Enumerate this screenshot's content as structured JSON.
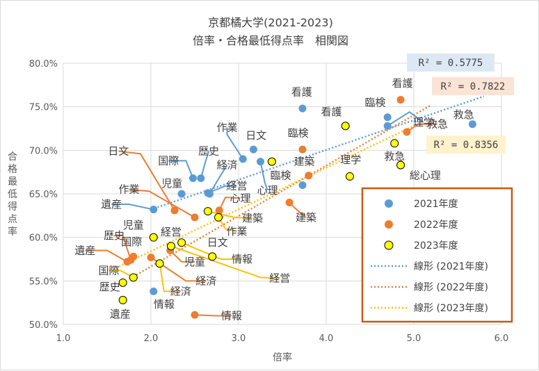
{
  "chart_data": {
    "type": "scatter",
    "title": "京都橘大学(2021-2023)",
    "subtitle": "倍率・合格最低得点率　相関図",
    "xlabel": "倍率",
    "ylabel": "合格最低得点率",
    "xlim": [
      1.0,
      6.0
    ],
    "ylim": [
      50.0,
      80.0
    ],
    "x_ticks": [
      "1.0",
      "2.0",
      "3.0",
      "4.0",
      "5.0",
      "6.0"
    ],
    "y_ticks": [
      "50.0%",
      "55.0%",
      "60.0%",
      "65.0%",
      "70.0%",
      "75.0%",
      "80.0%"
    ],
    "grid": "vertical and horizontal",
    "legend_placement": "bottom-right",
    "legend": [
      {
        "label": "2021年度",
        "kind": "marker",
        "series": 0
      },
      {
        "label": "2022年度",
        "kind": "marker",
        "series": 1
      },
      {
        "label": "2023年度",
        "kind": "marker",
        "series": 2
      },
      {
        "label": "線形 (2021年度)",
        "kind": "trend",
        "series": 0
      },
      {
        "label": "線形 (2022年度)",
        "kind": "trend",
        "series": 1
      },
      {
        "label": "線形 (2023年度)",
        "kind": "trend",
        "series": 2
      }
    ],
    "series": [
      {
        "name": "2021年度",
        "color": "#5b9bd5",
        "marker_fill": "#5b9bd5",
        "marker_stroke": "#5b9bd5",
        "trend": {
          "x0": 2.0,
          "y0": 63.2,
          "x1": 5.8,
          "y1": 76.2
        },
        "r2": "R² = 0.5775",
        "r2_fill": "#dde8f5",
        "points": [
          {
            "label": "看護",
            "x": 3.73,
            "y": 74.8
          },
          {
            "label": "臨検",
            "x": 4.7,
            "y": 73.8
          },
          {
            "label": "理学",
            "x": 4.7,
            "y": 72.8
          },
          {
            "label": "救急",
            "x": 5.67,
            "y": 73.0
          },
          {
            "label": "作業",
            "x": 3.05,
            "y": 69.0
          },
          {
            "label": "日文",
            "x": 3.17,
            "y": 70.1
          },
          {
            "label": "心理",
            "x": 3.25,
            "y": 68.7
          },
          {
            "label": "建築",
            "x": 3.73,
            "y": 66.0
          },
          {
            "label": "国際",
            "x": 2.48,
            "y": 66.8
          },
          {
            "label": "歴史",
            "x": 2.57,
            "y": 66.8
          },
          {
            "label": "経済",
            "x": 2.67,
            "y": 65.0
          },
          {
            "label": "経営",
            "x": 2.65,
            "y": 65.1
          },
          {
            "label": "児童",
            "x": 2.35,
            "y": 65.0
          },
          {
            "label": "遺産",
            "x": 2.03,
            "y": 63.2
          },
          {
            "label": "情報",
            "x": 2.03,
            "y": 53.8
          }
        ]
      },
      {
        "name": "2022年度",
        "color": "#ed7d31",
        "marker_fill": "#ed7d31",
        "marker_stroke": "#ed7d31",
        "trend": {
          "x0": 1.8,
          "y0": 55.5,
          "x1": 5.2,
          "y1": 75.2
        },
        "r2": "R² = 0.7822",
        "r2_fill": "#fbe3d6",
        "points": [
          {
            "label": "看護",
            "x": 4.85,
            "y": 75.8
          },
          {
            "label": "救急",
            "x": 4.92,
            "y": 72.1
          },
          {
            "label": "臨検",
            "x": 3.73,
            "y": 70.1
          },
          {
            "label": "建築",
            "x": 3.8,
            "y": 67.1
          },
          {
            "label": "心理",
            "x": 2.78,
            "y": 63.1
          },
          {
            "label": "建築",
            "x": 3.58,
            "y": 64.0
          },
          {
            "label": "日文",
            "x": 2.27,
            "y": 63.1
          },
          {
            "label": "作業",
            "x": 2.5,
            "y": 62.3
          },
          {
            "label": "遺産",
            "x": 1.73,
            "y": 57.2
          },
          {
            "label": "国際",
            "x": 1.8,
            "y": 57.8
          },
          {
            "label": "歴史",
            "x": 1.77,
            "y": 57.4
          },
          {
            "label": "児童",
            "x": 2.22,
            "y": 58.5
          },
          {
            "label": "経済",
            "x": 2.0,
            "y": 57.7
          },
          {
            "label": "情報",
            "x": 2.5,
            "y": 51.1
          }
        ]
      },
      {
        "name": "2023年度",
        "color": "#ffc000",
        "marker_fill": "#ffff00",
        "marker_stroke": "#000000",
        "trend": {
          "x0": 1.6,
          "y0": 56.5,
          "x1": 5.0,
          "y1": 72.8
        },
        "r2": "R² = 0.8356",
        "r2_fill": "#fff2cc",
        "points": [
          {
            "label": "看護",
            "x": 4.22,
            "y": 72.8
          },
          {
            "label": "救急",
            "x": 4.78,
            "y": 70.8
          },
          {
            "label": "総心理",
            "x": 4.85,
            "y": 68.3
          },
          {
            "label": "理学",
            "x": 4.27,
            "y": 67.0
          },
          {
            "label": "臨検",
            "x": 3.38,
            "y": 68.7
          },
          {
            "label": "建築",
            "x": 2.65,
            "y": 63.0
          },
          {
            "label": "作業",
            "x": 2.77,
            "y": 62.3
          },
          {
            "label": "日文",
            "x": 2.7,
            "y": 57.8
          },
          {
            "label": "経営",
            "x": 2.23,
            "y": 59.0
          },
          {
            "label": "児童",
            "x": 2.03,
            "y": 60.0
          },
          {
            "label": "経済",
            "x": 2.1,
            "y": 57.0
          },
          {
            "label": "国際",
            "x": 1.8,
            "y": 55.4
          },
          {
            "label": "歴史",
            "x": 1.68,
            "y": 54.8
          },
          {
            "label": "遺産",
            "x": 1.68,
            "y": 52.8
          },
          {
            "label": "情報",
            "x": 2.35,
            "y": 59.4
          }
        ]
      }
    ],
    "data_labels": [
      {
        "text": "看護",
        "series": 0,
        "point": 0,
        "lx": 3.72,
        "ly": 76.7,
        "leader": false
      },
      {
        "text": "臨検",
        "series": 0,
        "point": 1,
        "lx": 4.56,
        "ly": 75.5,
        "leader": false
      },
      {
        "text": "理学",
        "series": 0,
        "point": 2,
        "lx": 5.11,
        "ly": 73.2,
        "leader": true,
        "bend_x": 4.95,
        "bend_y": 74.4
      },
      {
        "text": "救急",
        "series": 0,
        "point": 3,
        "lx": 5.57,
        "ly": 74.1,
        "leader": false
      },
      {
        "text": "作業",
        "series": 0,
        "point": 4,
        "lx": 2.87,
        "ly": 72.6,
        "leader": true,
        "bend_x": 2.87,
        "bend_y": 71.8
      },
      {
        "text": "日文",
        "series": 0,
        "point": 5,
        "lx": 3.2,
        "ly": 71.7,
        "leader": false
      },
      {
        "text": "心理",
        "series": 0,
        "point": 6,
        "lx": 3.33,
        "ly": 65.4,
        "leader": true,
        "bend_x": 3.3,
        "bend_y": 66.3
      },
      {
        "text": "国際",
        "series": 0,
        "point": 8,
        "lx": 2.2,
        "ly": 68.8,
        "leader": true,
        "bend_x": 2.4,
        "bend_y": 68.8
      },
      {
        "text": "歴史",
        "series": 0,
        "point": 9,
        "lx": 2.66,
        "ly": 69.9,
        "leader": true,
        "bend_x": 2.62,
        "bend_y": 68.6
      },
      {
        "text": "経済",
        "series": 0,
        "point": 10,
        "lx": 2.87,
        "ly": 68.3,
        "leader": true,
        "bend_x": 2.8,
        "bend_y": 67.2
      },
      {
        "text": "経営",
        "series": 0,
        "point": 11,
        "lx": 2.98,
        "ly": 65.9,
        "leader": true,
        "bend_x": 2.85,
        "bend_y": 65.9
      },
      {
        "text": "児童",
        "series": 0,
        "point": 12,
        "lx": 2.24,
        "ly": 66.2,
        "leader": false
      },
      {
        "text": "遺産",
        "series": 0,
        "point": 13,
        "lx": 1.55,
        "ly": 63.8,
        "leader": true,
        "bend_x": 1.75,
        "bend_y": 63.8
      },
      {
        "text": "情報",
        "series": 0,
        "point": 14,
        "lx": 2.15,
        "ly": 52.3,
        "leader": false
      },
      {
        "text": "看護",
        "series": 1,
        "point": 0,
        "lx": 4.87,
        "ly": 77.7,
        "leader": false
      },
      {
        "text": "救急",
        "series": 1,
        "point": 1,
        "lx": 5.27,
        "ly": 73.0,
        "leader": true,
        "bend_x": 5.05,
        "bend_y": 73.0
      },
      {
        "text": "臨検",
        "series": 1,
        "point": 2,
        "lx": 3.68,
        "ly": 72.0,
        "leader": false
      },
      {
        "text": "建築",
        "series": 1,
        "point": 3,
        "lx": 3.75,
        "ly": 68.7,
        "leader": false
      },
      {
        "text": "心理",
        "series": 1,
        "point": 4,
        "lx": 3.02,
        "ly": 64.5,
        "leader": true,
        "bend_x": 2.85,
        "bend_y": 64.6
      },
      {
        "text": "建築",
        "series": 1,
        "point": 5,
        "lx": 3.77,
        "ly": 62.3,
        "leader": true,
        "bend_x": 3.65,
        "bend_y": 63.3
      },
      {
        "text": "日文",
        "series": 1,
        "point": 6,
        "lx": 1.63,
        "ly": 69.9,
        "leader": true,
        "bend_x": 1.88,
        "bend_y": 69.6
      },
      {
        "text": "作業",
        "series": 1,
        "point": 7,
        "lx": 1.75,
        "ly": 65.5,
        "leader": true,
        "bend_x": 1.98,
        "bend_y": 65.3
      },
      {
        "text": "遺産",
        "series": 1,
        "point": 8,
        "lx": 1.25,
        "ly": 58.5,
        "leader": true,
        "bend_x": 1.5,
        "bend_y": 58.5
      },
      {
        "text": "国際",
        "series": 1,
        "point": 9,
        "lx": 1.78,
        "ly": 59.5,
        "leader": false
      },
      {
        "text": "歴史",
        "series": 1,
        "point": 10,
        "lx": 1.58,
        "ly": 60.2,
        "leader": true,
        "bend_x": 1.68,
        "bend_y": 60.2
      },
      {
        "text": "児童",
        "series": 1,
        "point": 11,
        "lx": 2.5,
        "ly": 57.2,
        "leader": true,
        "bend_x": 2.35,
        "bend_y": 57.2
      },
      {
        "text": "経済",
        "series": 1,
        "point": 12,
        "lx": 2.63,
        "ly": 55.0,
        "leader": true,
        "bend_x": 2.4,
        "bend_y": 55.0
      },
      {
        "text": "情報",
        "series": 1,
        "point": 13,
        "lx": 2.92,
        "ly": 51.0,
        "leader": true,
        "bend_x": 2.75,
        "bend_y": 51.0
      },
      {
        "text": "看護",
        "series": 2,
        "point": 0,
        "lx": 4.06,
        "ly": 74.4,
        "leader": false
      },
      {
        "text": "救急",
        "series": 2,
        "point": 1,
        "lx": 4.78,
        "ly": 69.3,
        "leader": false
      },
      {
        "text": "総心理",
        "series": 2,
        "point": 2,
        "lx": 5.13,
        "ly": 67.1,
        "leader": false
      },
      {
        "text": "理学",
        "series": 2,
        "point": 3,
        "lx": 4.28,
        "ly": 68.9,
        "leader": false
      },
      {
        "text": "臨検",
        "series": 2,
        "point": 4,
        "lx": 3.48,
        "ly": 67.1,
        "leader": false
      },
      {
        "text": "建築",
        "series": 2,
        "point": 5,
        "lx": 3.16,
        "ly": 62.2,
        "leader": true,
        "bend_x": 2.95,
        "bend_y": 62.3
      },
      {
        "text": "作業",
        "series": 2,
        "point": 6,
        "lx": 2.98,
        "ly": 60.7,
        "leader": true,
        "bend_x": 2.85,
        "bend_y": 61.0
      },
      {
        "text": "日文",
        "series": 2,
        "point": 7,
        "lx": 2.76,
        "ly": 59.4,
        "leader": false
      },
      {
        "text": "経営",
        "series": 2,
        "point": 8,
        "lx": 3.47,
        "ly": 55.3,
        "leader": true,
        "bend_x": 3.25,
        "bend_y": 55.4
      },
      {
        "text": "児童",
        "series": 2,
        "point": 9,
        "lx": 1.8,
        "ly": 61.4,
        "leader": false
      },
      {
        "text": "経済",
        "series": 2,
        "point": 10,
        "lx": 2.34,
        "ly": 53.8,
        "leader": true,
        "bend_x": 2.15,
        "bend_y": 53.8
      },
      {
        "text": "情報",
        "series": 2,
        "point": 14,
        "lx": 3.04,
        "ly": 57.5,
        "leader": true,
        "bend_x": 2.8,
        "bend_y": 57.5
      },
      {
        "text": "国際",
        "series": 2,
        "point": 11,
        "lx": 1.52,
        "ly": 56.2,
        "leader": true,
        "bend_x": 1.65,
        "bend_y": 56.2
      },
      {
        "text": "歴史",
        "series": 2,
        "point": 12,
        "lx": 1.53,
        "ly": 54.3,
        "leader": false
      },
      {
        "text": "遺産",
        "series": 2,
        "point": 13,
        "lx": 1.65,
        "ly": 51.2,
        "leader": false
      },
      {
        "text": "経営",
        "series": 2,
        "point": 8,
        "lx": 2.23,
        "ly": 60.6,
        "leader": false
      }
    ]
  }
}
